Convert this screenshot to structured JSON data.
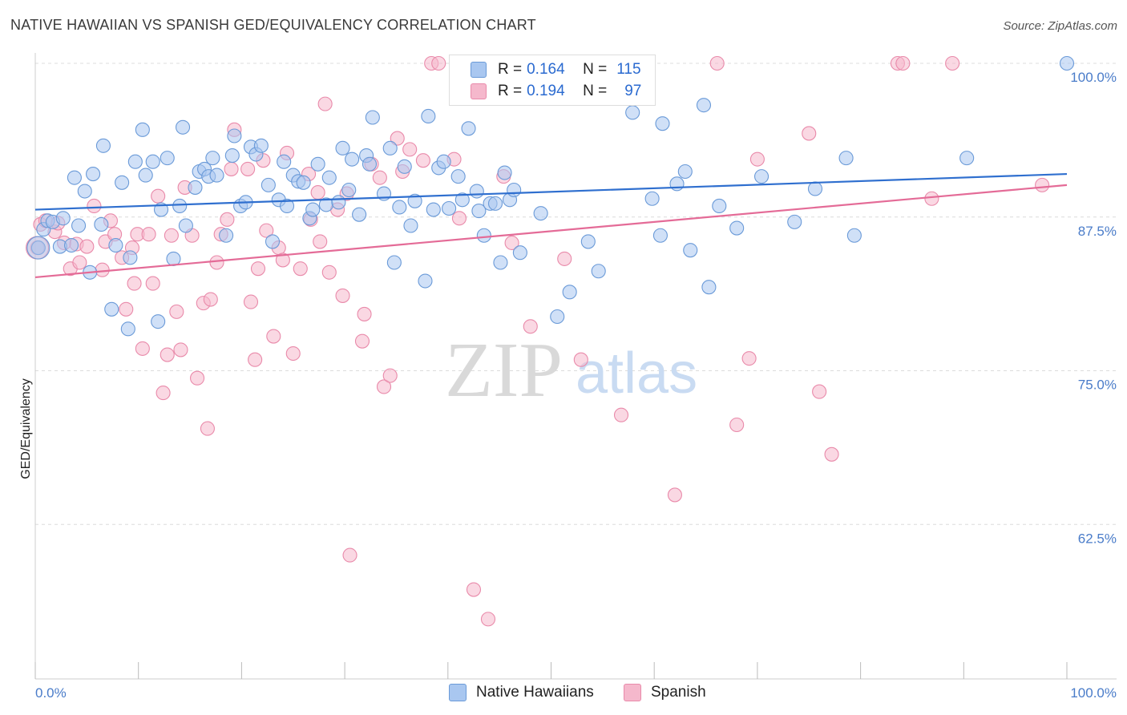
{
  "title": "NATIVE HAWAIIAN VS SPANISH GED/EQUIVALENCY CORRELATION CHART",
  "source": "Source: ZipAtlas.com",
  "watermark": {
    "zip": "ZIP",
    "atlas": "atlas"
  },
  "legend": {
    "rows": [
      {
        "r_label": "R =",
        "r_value": "0.164",
        "n_label": "N =",
        "n_value": "115"
      },
      {
        "r_label": "R =",
        "r_value": "0.194",
        "n_label": "N =",
        "n_value": "97"
      }
    ]
  },
  "bottom_legend": {
    "series1": "Native Hawaiians",
    "series2": "Spanish"
  },
  "colors": {
    "blue_fill": "#a9c7f0",
    "blue_stroke": "#6a9ad8",
    "blue_line": "#2f6fcf",
    "pink_fill": "#f5b8cc",
    "pink_stroke": "#e98aaa",
    "pink_line": "#e46b97",
    "tick_text": "#4a7cc9",
    "grid": "#dcdcdc"
  },
  "chart_data": {
    "type": "scatter",
    "title": "NATIVE HAWAIIAN VS SPANISH GED/EQUIVALENCY CORRELATION CHART",
    "xlabel": "",
    "ylabel": "GED/Equivalency",
    "xlim": [
      0,
      100
    ],
    "ylim": [
      51.5,
      101.5
    ],
    "x_tick_labels": [
      "0.0%",
      "100.0%"
    ],
    "y_ticks": [
      62.5,
      75.0,
      87.5,
      100.0
    ],
    "y_tick_labels": [
      "62.5%",
      "75.0%",
      "87.5%",
      "100.0%"
    ],
    "grid": true,
    "legend_position": "top-center",
    "series": [
      {
        "name": "Native Hawaiians",
        "r": 0.164,
        "n": 115,
        "trend": {
          "x": [
            0,
            100
          ],
          "y": [
            88.1,
            91.0
          ]
        },
        "points": [
          [
            0.3,
            85.0
          ],
          [
            0.8,
            86.5
          ],
          [
            1.2,
            87.2
          ],
          [
            1.7,
            87.1
          ],
          [
            2.4,
            85.1
          ],
          [
            2.7,
            87.4
          ],
          [
            3.5,
            85.2
          ],
          [
            3.8,
            90.7
          ],
          [
            4.2,
            86.8
          ],
          [
            4.8,
            89.6
          ],
          [
            5.3,
            83.0
          ],
          [
            5.6,
            91.0
          ],
          [
            6.4,
            86.9
          ],
          [
            6.6,
            93.3
          ],
          [
            7.4,
            80.0
          ],
          [
            7.8,
            85.2
          ],
          [
            8.4,
            90.3
          ],
          [
            9.0,
            78.4
          ],
          [
            9.2,
            84.2
          ],
          [
            9.7,
            92.0
          ],
          [
            10.4,
            94.6
          ],
          [
            10.7,
            90.9
          ],
          [
            11.4,
            92.0
          ],
          [
            11.9,
            79.0
          ],
          [
            12.2,
            88.1
          ],
          [
            12.8,
            92.3
          ],
          [
            13.4,
            84.1
          ],
          [
            14.0,
            88.4
          ],
          [
            14.3,
            94.8
          ],
          [
            14.6,
            86.8
          ],
          [
            15.5,
            89.9
          ],
          [
            15.9,
            91.2
          ],
          [
            16.4,
            91.4
          ],
          [
            16.8,
            90.8
          ],
          [
            17.2,
            92.3
          ],
          [
            17.6,
            90.9
          ],
          [
            18.5,
            86.0
          ],
          [
            19.1,
            92.5
          ],
          [
            19.3,
            94.1
          ],
          [
            19.9,
            88.4
          ],
          [
            20.4,
            88.7
          ],
          [
            20.9,
            93.2
          ],
          [
            21.4,
            92.6
          ],
          [
            21.9,
            93.3
          ],
          [
            22.6,
            90.1
          ],
          [
            23.0,
            85.5
          ],
          [
            23.6,
            88.9
          ],
          [
            24.1,
            92.0
          ],
          [
            24.4,
            88.4
          ],
          [
            25.0,
            90.9
          ],
          [
            25.5,
            90.4
          ],
          [
            26.0,
            90.3
          ],
          [
            26.6,
            87.4
          ],
          [
            26.9,
            88.1
          ],
          [
            27.4,
            91.8
          ],
          [
            28.2,
            88.5
          ],
          [
            28.5,
            90.7
          ],
          [
            29.4,
            88.7
          ],
          [
            29.8,
            93.1
          ],
          [
            30.4,
            89.7
          ],
          [
            30.7,
            92.2
          ],
          [
            31.4,
            87.7
          ],
          [
            32.1,
            92.5
          ],
          [
            32.4,
            91.8
          ],
          [
            32.7,
            95.6
          ],
          [
            33.8,
            89.4
          ],
          [
            34.4,
            93.1
          ],
          [
            34.8,
            83.8
          ],
          [
            35.3,
            88.3
          ],
          [
            35.8,
            91.6
          ],
          [
            36.4,
            86.8
          ],
          [
            36.8,
            88.8
          ],
          [
            37.8,
            82.3
          ],
          [
            38.1,
            95.7
          ],
          [
            38.6,
            88.1
          ],
          [
            39.1,
            91.5
          ],
          [
            39.6,
            92.0
          ],
          [
            40.1,
            88.2
          ],
          [
            41.0,
            90.8
          ],
          [
            41.4,
            88.9
          ],
          [
            42.0,
            94.7
          ],
          [
            42.8,
            89.6
          ],
          [
            43.0,
            88.0
          ],
          [
            43.5,
            86.0
          ],
          [
            44.1,
            88.6
          ],
          [
            44.6,
            88.6
          ],
          [
            45.1,
            83.8
          ],
          [
            45.5,
            91.1
          ],
          [
            46.0,
            88.9
          ],
          [
            46.4,
            89.7
          ],
          [
            47.0,
            84.6
          ],
          [
            49.0,
            87.8
          ],
          [
            50.6,
            79.4
          ],
          [
            51.8,
            81.4
          ],
          [
            53.6,
            85.5
          ],
          [
            54.6,
            83.1
          ],
          [
            57.9,
            96.0
          ],
          [
            59.3,
            100.0
          ],
          [
            59.8,
            89.0
          ],
          [
            60.6,
            86.0
          ],
          [
            60.8,
            95.1
          ],
          [
            62.2,
            90.2
          ],
          [
            63.0,
            91.2
          ],
          [
            63.5,
            84.8
          ],
          [
            64.8,
            96.6
          ],
          [
            65.3,
            81.8
          ],
          [
            66.3,
            88.4
          ],
          [
            68.0,
            86.6
          ],
          [
            70.4,
            90.8
          ],
          [
            73.6,
            87.1
          ],
          [
            75.6,
            89.8
          ],
          [
            78.6,
            92.3
          ],
          [
            79.4,
            86.0
          ],
          [
            90.3,
            92.3
          ],
          [
            100.0,
            100.0
          ]
        ]
      },
      {
        "name": "Spanish",
        "r": 0.194,
        "n": 97,
        "trend": {
          "x": [
            0,
            100
          ],
          "y": [
            82.6,
            90.1
          ]
        },
        "points": [
          [
            0.2,
            85.0
          ],
          [
            0.5,
            86.9
          ],
          [
            1.0,
            87.2
          ],
          [
            1.9,
            86.3
          ],
          [
            2.2,
            87.0
          ],
          [
            2.8,
            85.4
          ],
          [
            3.4,
            83.3
          ],
          [
            4.0,
            85.3
          ],
          [
            4.3,
            83.8
          ],
          [
            5.0,
            85.1
          ],
          [
            5.7,
            88.4
          ],
          [
            6.5,
            83.2
          ],
          [
            6.8,
            85.5
          ],
          [
            7.3,
            87.2
          ],
          [
            7.7,
            86.1
          ],
          [
            8.4,
            84.2
          ],
          [
            8.8,
            80.0
          ],
          [
            9.4,
            85.0
          ],
          [
            9.6,
            82.1
          ],
          [
            9.9,
            86.1
          ],
          [
            10.4,
            76.8
          ],
          [
            11.0,
            86.1
          ],
          [
            11.4,
            82.1
          ],
          [
            11.9,
            89.2
          ],
          [
            12.4,
            73.2
          ],
          [
            12.8,
            76.3
          ],
          [
            13.2,
            86.0
          ],
          [
            13.7,
            79.8
          ],
          [
            14.1,
            76.7
          ],
          [
            14.5,
            89.9
          ],
          [
            15.2,
            86.0
          ],
          [
            15.7,
            74.4
          ],
          [
            16.3,
            80.5
          ],
          [
            16.7,
            70.3
          ],
          [
            17.0,
            80.8
          ],
          [
            17.6,
            83.8
          ],
          [
            18.0,
            86.1
          ],
          [
            18.6,
            87.3
          ],
          [
            19.0,
            91.4
          ],
          [
            19.3,
            94.6
          ],
          [
            20.6,
            91.4
          ],
          [
            20.9,
            80.6
          ],
          [
            21.3,
            75.9
          ],
          [
            21.6,
            83.3
          ],
          [
            22.1,
            92.1
          ],
          [
            22.4,
            86.4
          ],
          [
            23.1,
            77.8
          ],
          [
            23.6,
            85.0
          ],
          [
            24.0,
            84.0
          ],
          [
            24.4,
            92.7
          ],
          [
            25.0,
            76.4
          ],
          [
            25.7,
            83.3
          ],
          [
            26.5,
            91.0
          ],
          [
            26.7,
            87.3
          ],
          [
            27.4,
            89.5
          ],
          [
            27.6,
            85.5
          ],
          [
            28.1,
            96.7
          ],
          [
            28.5,
            83.0
          ],
          [
            29.3,
            88.1
          ],
          [
            29.8,
            81.1
          ],
          [
            30.2,
            89.4
          ],
          [
            30.5,
            60.0
          ],
          [
            31.7,
            77.4
          ],
          [
            31.9,
            79.6
          ],
          [
            32.6,
            91.8
          ],
          [
            33.4,
            90.7
          ],
          [
            33.8,
            73.7
          ],
          [
            34.4,
            74.6
          ],
          [
            35.1,
            93.9
          ],
          [
            35.6,
            91.2
          ],
          [
            36.3,
            93.0
          ],
          [
            37.6,
            92.1
          ],
          [
            38.4,
            100.0
          ],
          [
            39.1,
            100.0
          ],
          [
            40.6,
            92.2
          ],
          [
            41.1,
            87.4
          ],
          [
            42.5,
            57.2
          ],
          [
            43.9,
            54.8
          ],
          [
            45.4,
            90.8
          ],
          [
            46.2,
            85.4
          ],
          [
            48.0,
            78.6
          ],
          [
            51.3,
            84.1
          ],
          [
            52.9,
            75.9
          ],
          [
            56.8,
            71.4
          ],
          [
            62.0,
            64.9
          ],
          [
            66.1,
            100.0
          ],
          [
            68.0,
            70.6
          ],
          [
            69.2,
            76.0
          ],
          [
            70.0,
            92.2
          ],
          [
            75.0,
            94.3
          ],
          [
            76.0,
            73.3
          ],
          [
            77.2,
            68.2
          ],
          [
            83.6,
            100.0
          ],
          [
            84.1,
            100.0
          ],
          [
            86.9,
            89.0
          ],
          [
            88.9,
            100.0
          ],
          [
            97.6,
            90.1
          ]
        ]
      }
    ]
  }
}
